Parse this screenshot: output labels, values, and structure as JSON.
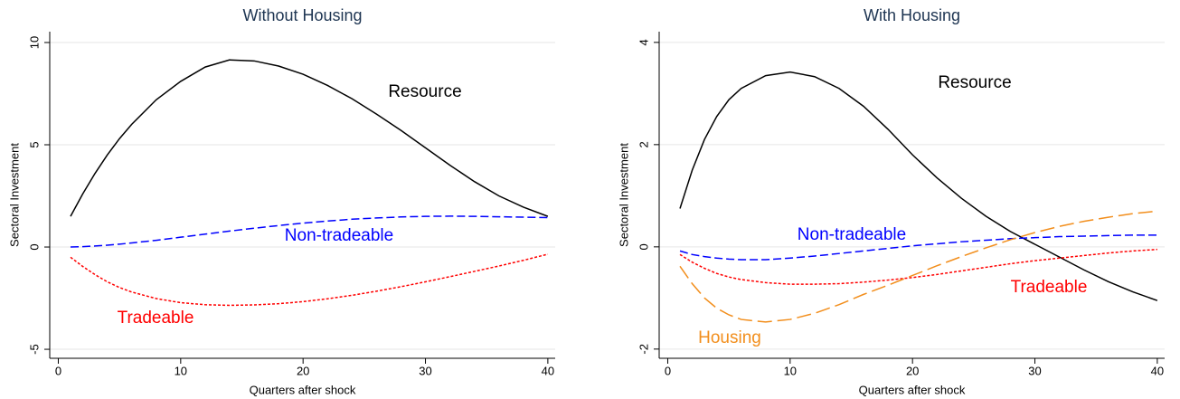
{
  "chart_data": [
    {
      "type": "line",
      "title": "Without Housing",
      "x_label": "Quarters after shock",
      "y_label": "Sectoral Investment",
      "x": [
        1,
        2,
        3,
        4,
        5,
        6,
        8,
        10,
        12,
        14,
        16,
        18,
        20,
        22,
        24,
        26,
        28,
        30,
        32,
        34,
        36,
        38,
        40
      ],
      "xlim": [
        -0.7,
        40.6
      ],
      "xticks": [
        0,
        10,
        20,
        30,
        40
      ],
      "ylim": [
        -5.44,
        10.53
      ],
      "yticks": [
        -5,
        0,
        5,
        10
      ],
      "grid": true,
      "series": [
        {
          "name": "Resource",
          "color": "#000000",
          "dash": "solid",
          "values": [
            1.5,
            2.6,
            3.6,
            4.5,
            5.3,
            6.0,
            7.2,
            8.1,
            8.8,
            9.15,
            9.1,
            8.85,
            8.45,
            7.9,
            7.25,
            6.5,
            5.7,
            4.85,
            4.0,
            3.2,
            2.5,
            1.95,
            1.5
          ]
        },
        {
          "name": "Non-tradeable",
          "color": "#0000ff",
          "dash": "dashed",
          "values": [
            0,
            0.02,
            0.05,
            0.09,
            0.14,
            0.2,
            0.33,
            0.48,
            0.63,
            0.78,
            0.92,
            1.05,
            1.17,
            1.27,
            1.36,
            1.42,
            1.47,
            1.5,
            1.51,
            1.5,
            1.48,
            1.46,
            1.44
          ]
        },
        {
          "name": "Tradeable",
          "color": "#ff0000",
          "dash": "dotted",
          "values": [
            -0.5,
            -0.95,
            -1.35,
            -1.7,
            -1.98,
            -2.2,
            -2.52,
            -2.72,
            -2.82,
            -2.85,
            -2.83,
            -2.77,
            -2.67,
            -2.53,
            -2.36,
            -2.16,
            -1.94,
            -1.7,
            -1.45,
            -1.19,
            -0.93,
            -0.65,
            -0.35
          ]
        }
      ]
    },
    {
      "type": "line",
      "title": "With Housing",
      "x_label": "Quarters after shock",
      "y_label": "Sectoral Investment",
      "x": [
        1,
        2,
        3,
        4,
        5,
        6,
        8,
        10,
        12,
        14,
        16,
        18,
        20,
        22,
        24,
        26,
        28,
        30,
        32,
        34,
        36,
        38,
        40
      ],
      "xlim": [
        -0.7,
        40.6
      ],
      "xticks": [
        0,
        10,
        20,
        30,
        40
      ],
      "ylim": [
        -2.18,
        4.21
      ],
      "yticks": [
        -2,
        0,
        2,
        4
      ],
      "grid": true,
      "series": [
        {
          "name": "Resource",
          "color": "#000000",
          "dash": "solid",
          "values": [
            0.75,
            1.5,
            2.1,
            2.55,
            2.88,
            3.1,
            3.35,
            3.42,
            3.33,
            3.1,
            2.75,
            2.3,
            1.8,
            1.35,
            0.95,
            0.6,
            0.3,
            0.05,
            -0.2,
            -0.45,
            -0.68,
            -0.88,
            -1.05
          ]
        },
        {
          "name": "Non-tradeable",
          "color": "#0000ff",
          "dash": "dashed",
          "values": [
            -0.08,
            -0.15,
            -0.19,
            -0.22,
            -0.24,
            -0.25,
            -0.25,
            -0.22,
            -0.18,
            -0.13,
            -0.08,
            -0.03,
            0.02,
            0.06,
            0.1,
            0.13,
            0.16,
            0.18,
            0.2,
            0.21,
            0.22,
            0.23,
            0.23
          ]
        },
        {
          "name": "Tradeable",
          "color": "#ff0000",
          "dash": "dotted",
          "values": [
            -0.15,
            -0.3,
            -0.42,
            -0.52,
            -0.59,
            -0.64,
            -0.7,
            -0.73,
            -0.73,
            -0.72,
            -0.69,
            -0.65,
            -0.6,
            -0.54,
            -0.47,
            -0.4,
            -0.33,
            -0.27,
            -0.22,
            -0.17,
            -0.12,
            -0.08,
            -0.05
          ]
        },
        {
          "name": "Housing",
          "color": "#f28e1c",
          "dash": "longdash",
          "values": [
            -0.38,
            -0.72,
            -1.0,
            -1.2,
            -1.33,
            -1.42,
            -1.47,
            -1.42,
            -1.3,
            -1.13,
            -0.93,
            -0.75,
            -0.56,
            -0.37,
            -0.19,
            -0.02,
            0.14,
            0.28,
            0.4,
            0.5,
            0.58,
            0.65,
            0.7
          ]
        }
      ]
    }
  ]
}
